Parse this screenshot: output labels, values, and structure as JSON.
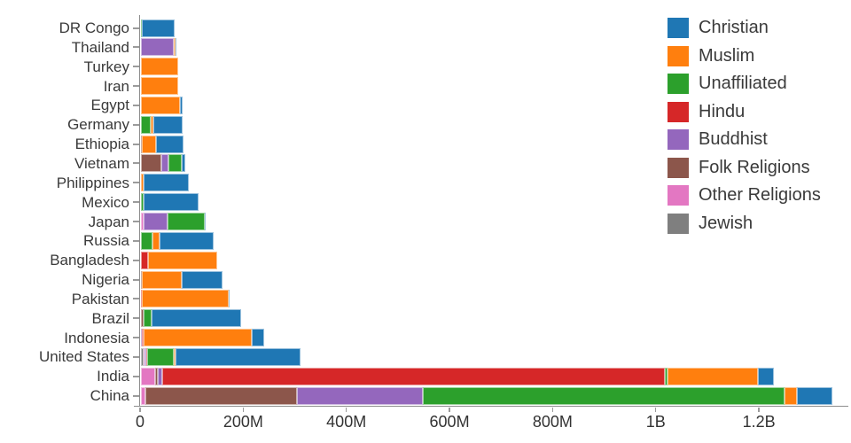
{
  "chart_data": {
    "type": "bar",
    "orientation": "horizontal",
    "stacked": true,
    "title": "",
    "xlabel": "",
    "ylabel": "",
    "unit": "millions of people",
    "grid": false,
    "legend_position": "top-right",
    "xlim": [
      0,
      1370
    ],
    "x_ticks": [
      {
        "value": 0,
        "label": "0"
      },
      {
        "value": 200,
        "label": "200M"
      },
      {
        "value": 400,
        "label": "400M"
      },
      {
        "value": 600,
        "label": "600M"
      },
      {
        "value": 800,
        "label": "800M"
      },
      {
        "value": 1000,
        "label": "1B"
      },
      {
        "value": 1200,
        "label": "1.2B"
      }
    ],
    "legend": [
      {
        "name": "Christian",
        "color": "#1f77b4"
      },
      {
        "name": "Muslim",
        "color": "#ff7f0e"
      },
      {
        "name": "Unaffiliated",
        "color": "#2ca02c"
      },
      {
        "name": "Hindu",
        "color": "#d62728"
      },
      {
        "name": "Buddhist",
        "color": "#9467bd"
      },
      {
        "name": "Folk Religions",
        "color": "#8c564b"
      },
      {
        "name": "Other Religions",
        "color": "#e377c2"
      },
      {
        "name": "Jewish",
        "color": "#7f7f7f"
      }
    ],
    "stack_order_left_to_right": [
      "Jewish",
      "Other Religions",
      "Folk Religions",
      "Buddhist",
      "Hindu",
      "Unaffiliated",
      "Muslim",
      "Christian"
    ],
    "categories_top_to_bottom": [
      "DR Congo",
      "Thailand",
      "Turkey",
      "Iran",
      "Egypt",
      "Germany",
      "Ethiopia",
      "Vietnam",
      "Philippines",
      "Mexico",
      "Japan",
      "Russia",
      "Bangladesh",
      "Nigeria",
      "Pakistan",
      "Brazil",
      "Indonesia",
      "United States",
      "India",
      "China"
    ],
    "series_values_in_stack_order_millions": {
      "DR Congo": [
        0,
        0.01,
        1.19,
        0,
        0,
        0.59,
        0.97,
        63.21
      ],
      "Thailand": [
        0,
        0.01,
        0.01,
        64.42,
        0.07,
        0.21,
        3.81,
        0.62
      ],
      "Turkey": [
        0.02,
        0.01,
        0.03,
        0.02,
        0,
        0.89,
        71.33,
        0.29
      ],
      "Iran": [
        0.01,
        0.09,
        0.02,
        0.01,
        0.01,
        0.19,
        73.57,
        0.12
      ],
      "Egypt": [
        0,
        0,
        0.01,
        0,
        0,
        0.02,
        76.99,
        4.14
      ],
      "Germany": [
        0.23,
        0.01,
        0.01,
        0.22,
        0.08,
        20.35,
        4.76,
        56.54
      ],
      "Ethiopia": [
        0.01,
        0.01,
        2.16,
        0.01,
        0,
        0.33,
        28.7,
        52.09
      ],
      "Vietnam": [
        0,
        0.28,
        39.8,
        14.41,
        0.06,
        26.01,
        0.18,
        7.2
      ],
      "Philippines": [
        0,
        0.02,
        1.4,
        0.04,
        0,
        0.07,
        5.13,
        86.37
      ],
      "Mexico": [
        0.04,
        0.09,
        0.11,
        0.01,
        0,
        5.33,
        0.01,
        107.75
      ],
      "Japan": [
        0,
        5.95,
        0.51,
        45.81,
        0,
        72.13,
        0.13,
        2.02
      ],
      "Russia": [
        0.29,
        0.14,
        0.29,
        0.14,
        0,
        23.16,
        14.3,
        104.79
      ],
      "Bangladesh": [
        0,
        0.01,
        0.74,
        0.74,
        13.53,
        0.15,
        133.52,
        0.3
      ],
      "Nigeria": [
        0,
        0.03,
        2.22,
        0,
        0,
        0.63,
        77.31,
        78.1
      ],
      "Pakistan": [
        0,
        0.02,
        0.03,
        0.02,
        3.3,
        0.02,
        167.34,
        2.78
      ],
      "Brazil": [
        0.11,
        0.59,
        5.46,
        0.25,
        0,
        15.4,
        0.04,
        173.31
      ],
      "Indonesia": [
        0,
        0.24,
        0.72,
        1.68,
        4.08,
        0.24,
        209.16,
        23.75
      ],
      "United States": [
        5.69,
        1.9,
        0.63,
        3.57,
        1.79,
        50.98,
        2.77,
        243.06
      ],
      "India": [
        0.01,
        27.56,
        5.84,
        9.25,
        973.75,
        5.0,
        176.34,
        30.62
      ],
      "China": [
        0,
        9.08,
        294.32,
        244.13,
        0.02,
        700.68,
        24.69,
        68.41
      ]
    }
  },
  "colors": {
    "background": "#ffffff",
    "axis_line": "#8d8d8d",
    "tick_mark": "#9b9b9b",
    "label_text": "#3a3a3a",
    "tick_label_text": "#333333",
    "segment_edge": "rgba(255,255,255,0.55)"
  }
}
